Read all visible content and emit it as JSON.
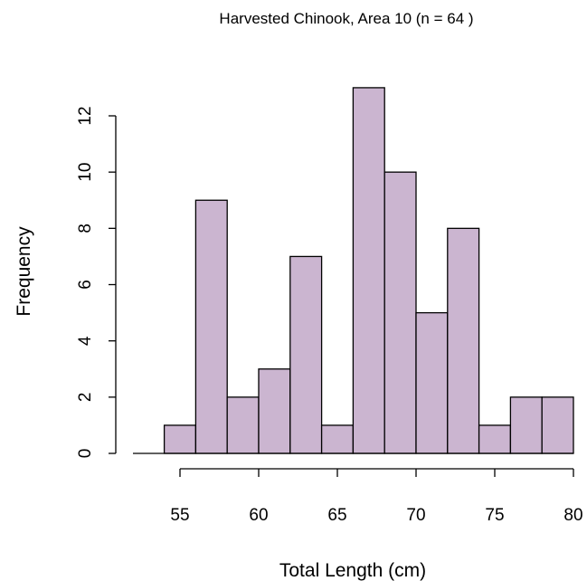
{
  "chart_data": {
    "type": "bar",
    "title": "Harvested Chinook, Area  10  (n = 64 )",
    "xlabel": "Total Length (cm)",
    "ylabel": "Frequency",
    "bin_edges": [
      54,
      56,
      58,
      60,
      62,
      64,
      66,
      68,
      70,
      72,
      74,
      76,
      78,
      80
    ],
    "values": [
      1,
      9,
      2,
      3,
      7,
      1,
      13,
      10,
      5,
      8,
      1,
      2,
      2
    ],
    "xlim": [
      48,
      80
    ],
    "ylim": [
      0,
      13
    ],
    "x_ticks": [
      "55",
      "60",
      "65",
      "70",
      "75",
      "80"
    ],
    "y_ticks": [
      "0",
      "2",
      "4",
      "6",
      "8",
      "10",
      "12"
    ],
    "bar_color": "#cbb5d0",
    "grid": false
  }
}
